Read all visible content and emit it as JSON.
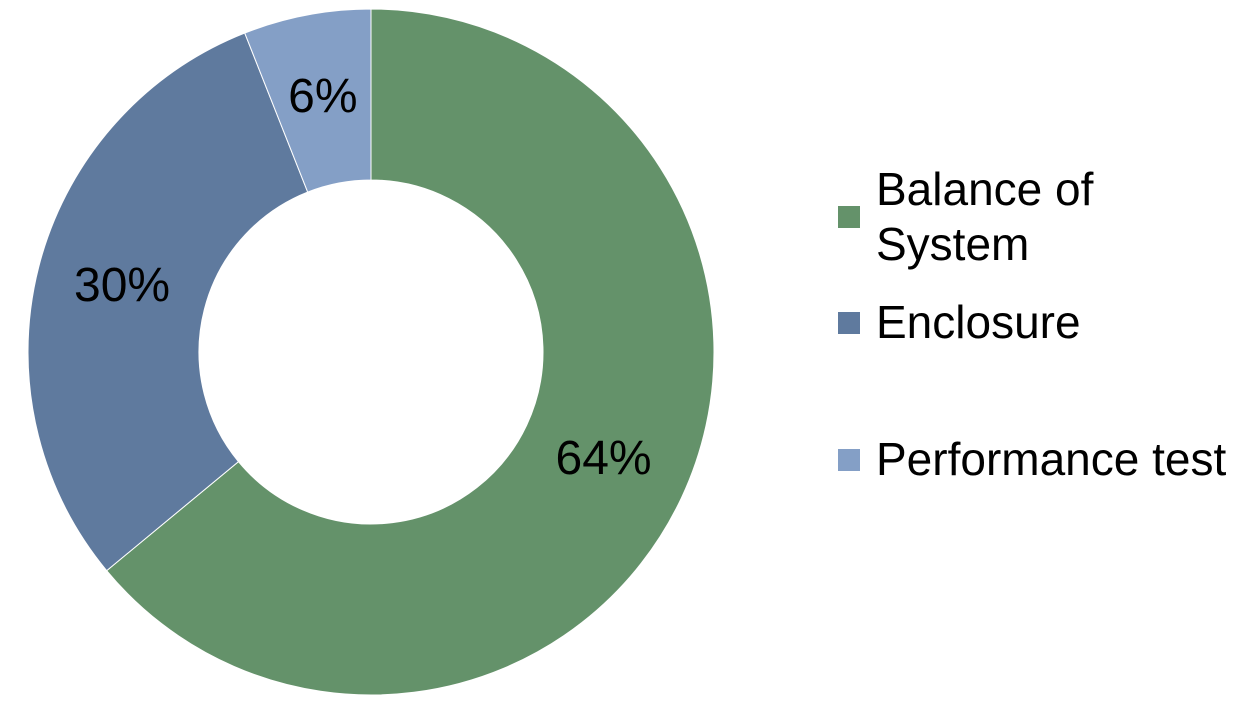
{
  "chart_data": {
    "type": "donut",
    "categories": [
      "Balance of System",
      "Enclosure",
      "Performance test"
    ],
    "values": [
      64,
      30,
      6
    ],
    "value_labels": [
      "64%",
      "30%",
      "6%"
    ],
    "colors": [
      "#64926a",
      "#5f7a9e",
      "#849fc6"
    ]
  }
}
